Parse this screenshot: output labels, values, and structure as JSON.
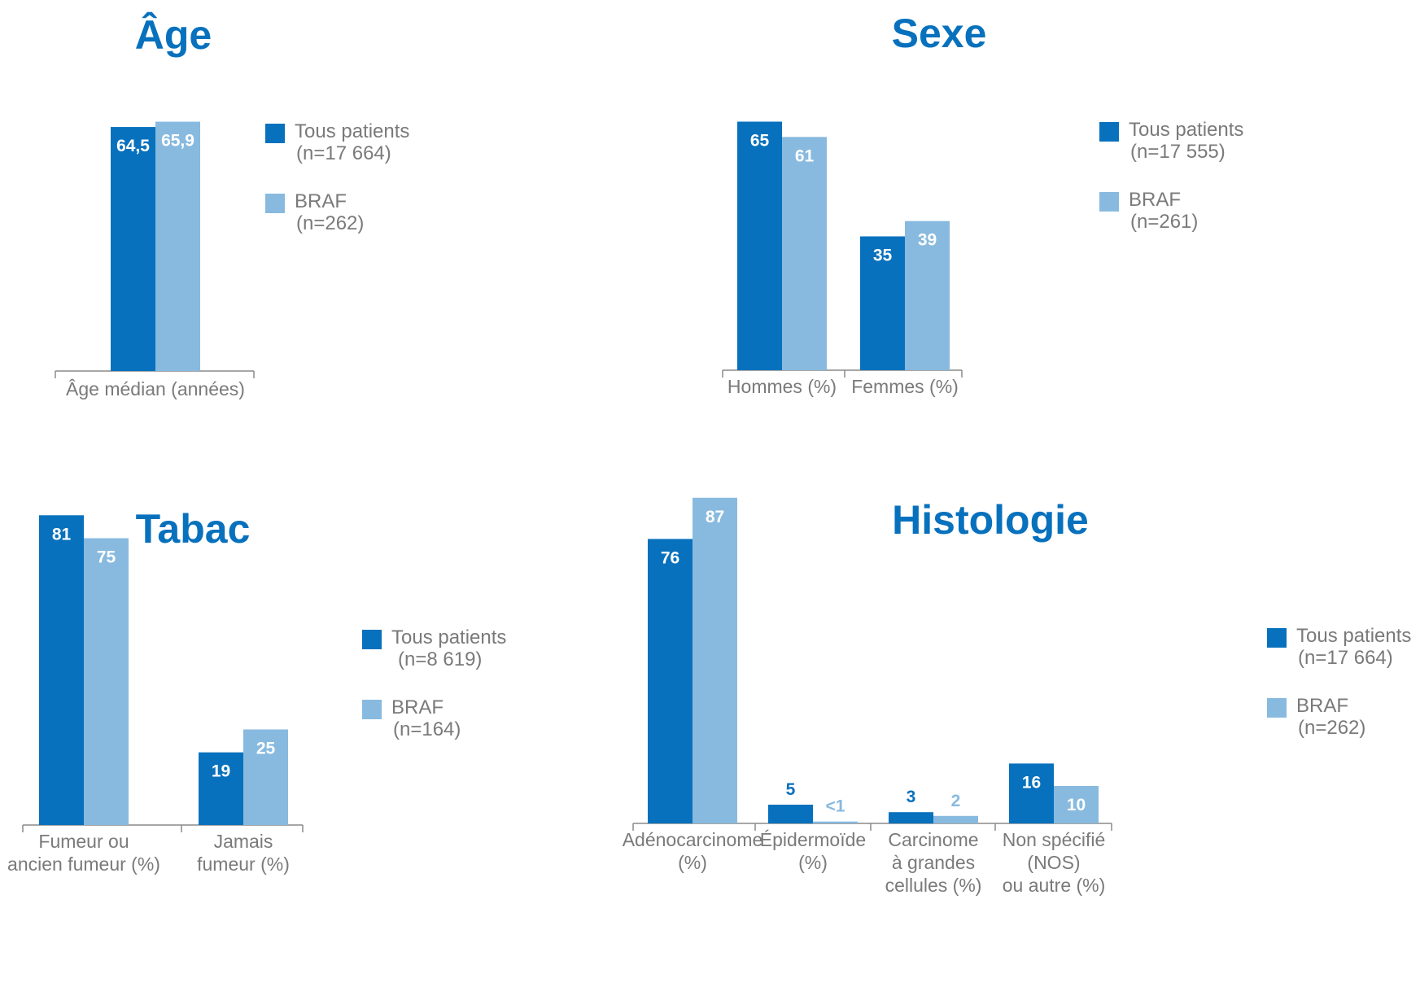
{
  "colors": {
    "all_patients": "#0871bd",
    "braf": "#88badf",
    "title": "#0871bd",
    "axis": "#8a8a8a",
    "label_text": "#7a7a7a"
  },
  "chart_data": [
    {
      "id": "age",
      "type": "bar",
      "title": "Âge",
      "categories": [
        [
          "Âge médian (années)"
        ]
      ],
      "series": [
        {
          "name": "Tous patients",
          "n": "(n=17 664)",
          "values": [
            64.5
          ],
          "labels": [
            "64,5"
          ]
        },
        {
          "name": "BRAF",
          "n": "(n=262)",
          "values": [
            65.9
          ],
          "labels": [
            "65,9"
          ]
        }
      ],
      "xlabel": "",
      "ylabel": ""
    },
    {
      "id": "sexe",
      "type": "bar",
      "title": "Sexe",
      "categories": [
        [
          "Hommes (%)"
        ],
        [
          "Femmes (%)"
        ]
      ],
      "series": [
        {
          "name": "Tous patients",
          "n": "(n=17 555)",
          "values": [
            65,
            35
          ],
          "labels": [
            "65",
            "35"
          ]
        },
        {
          "name": "BRAF",
          "n": "(n=261)",
          "values": [
            61,
            39
          ],
          "labels": [
            "61",
            "39"
          ]
        }
      ],
      "xlabel": "",
      "ylabel": ""
    },
    {
      "id": "tabac",
      "type": "bar",
      "title": "Tabac",
      "categories": [
        [
          "Fumeur ou",
          "ancien fumeur (%)"
        ],
        [
          "Jamais",
          "fumeur (%)"
        ]
      ],
      "series": [
        {
          "name": "Tous patients",
          "n": "(n=8 619)",
          "values": [
            81,
            19
          ],
          "labels": [
            "81",
            "19"
          ]
        },
        {
          "name": "BRAF",
          "n": "(n=164)",
          "values": [
            75,
            25
          ],
          "labels": [
            "75",
            "25"
          ]
        }
      ],
      "xlabel": "",
      "ylabel": ""
    },
    {
      "id": "histologie",
      "type": "bar",
      "title": "Histologie",
      "categories": [
        [
          "Adénocarcinome",
          "(%)"
        ],
        [
          "Épidermoïde",
          "(%)"
        ],
        [
          "Carcinome",
          "à grandes",
          "cellules (%)"
        ],
        [
          "Non spécifié",
          "(NOS)",
          "ou autre (%)"
        ]
      ],
      "series": [
        {
          "name": "Tous patients",
          "n": "(n=17 664)",
          "values": [
            76,
            5,
            3,
            16
          ],
          "labels": [
            "76",
            "5",
            "3",
            "16"
          ]
        },
        {
          "name": "BRAF",
          "n": "(n=262)",
          "values": [
            87,
            0.5,
            2,
            10
          ],
          "labels": [
            "87",
            "<1",
            "2",
            "10"
          ]
        }
      ],
      "xlabel": "",
      "ylabel": ""
    }
  ]
}
